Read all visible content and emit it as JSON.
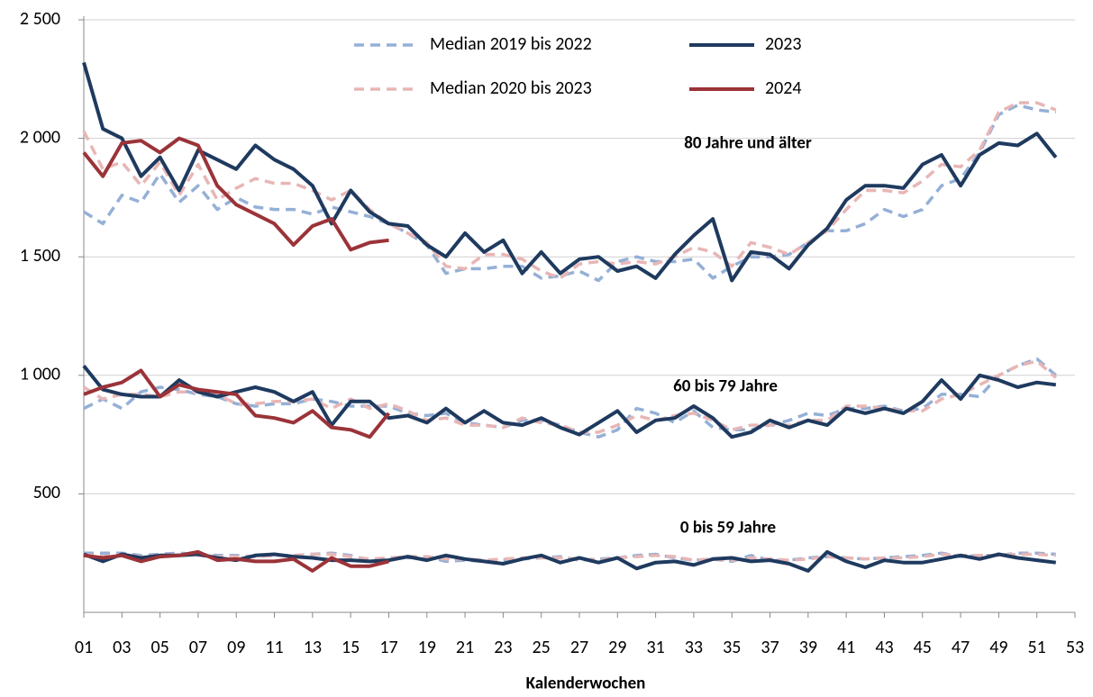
{
  "chart_data": {
    "type": "line",
    "x_label": "Kalenderwochen",
    "x": [
      1,
      2,
      3,
      4,
      5,
      6,
      7,
      8,
      9,
      10,
      11,
      12,
      13,
      14,
      15,
      16,
      17,
      18,
      19,
      20,
      21,
      22,
      23,
      24,
      25,
      26,
      27,
      28,
      29,
      30,
      31,
      32,
      33,
      34,
      35,
      36,
      37,
      38,
      39,
      40,
      41,
      42,
      43,
      44,
      45,
      46,
      47,
      48,
      49,
      50,
      51,
      52
    ],
    "xlim": [
      1,
      53
    ],
    "xticks": [
      {
        "value": 1,
        "label": "01"
      },
      {
        "value": 3,
        "label": "03"
      },
      {
        "value": 5,
        "label": "05"
      },
      {
        "value": 7,
        "label": "07"
      },
      {
        "value": 9,
        "label": "09"
      },
      11,
      13,
      15,
      17,
      19,
      21,
      23,
      25,
      27,
      29,
      31,
      33,
      35,
      37,
      39,
      41,
      43,
      45,
      47,
      49,
      51,
      53
    ],
    "ylim": [
      0,
      2500
    ],
    "yticks": [
      {
        "value": 500,
        "label": "500"
      },
      {
        "value": 1000,
        "label": "1 000"
      },
      {
        "value": 1500,
        "label": "1 500"
      },
      {
        "value": 2000,
        "label": "2 000"
      },
      {
        "value": 2500,
        "label": "2 500"
      }
    ],
    "grid": true,
    "legend": [
      {
        "name": "Median 2019 bis 2022",
        "color": "#95b0d6",
        "dashed": true
      },
      {
        "name": "Median 2020 bis 2023",
        "color": "#e8b6b6",
        "dashed": true
      },
      {
        "name": "2023",
        "color": "#1f3a5f",
        "dashed": false
      },
      {
        "name": "2024",
        "color": "#9b3339",
        "dashed": false
      }
    ],
    "groups": [
      {
        "label": "80 Jahre und älter",
        "series": [
          {
            "values": [
              1690,
              1640,
              1760,
              1730,
              1850,
              1730,
              1800,
              1700,
              1750,
              1710,
              1700,
              1700,
              1680,
              1710,
              1690,
              1670,
              1640,
              1600,
              1550,
              1430,
              1450,
              1450,
              1460,
              1460,
              1410,
              1420,
              1440,
              1400,
              1480,
              1500,
              1480,
              1480,
              1490,
              1410,
              1460,
              1500,
              1500,
              1510,
              1560,
              1610,
              1610,
              1640,
              1700,
              1670,
              1700,
              1800,
              1830,
              1940,
              2100,
              2140,
              2120,
              2110
            ]
          },
          {
            "values": [
              2030,
              1870,
              1900,
              1800,
              1900,
              1760,
              1890,
              1740,
              1790,
              1830,
              1810,
              1810,
              1780,
              1740,
              1780,
              1700,
              1640,
              1600,
              1560,
              1460,
              1450,
              1510,
              1510,
              1490,
              1440,
              1410,
              1470,
              1480,
              1470,
              1480,
              1470,
              1500,
              1540,
              1520,
              1460,
              1560,
              1540,
              1510,
              1560,
              1610,
              1700,
              1780,
              1780,
              1770,
              1820,
              1890,
              1880,
              1950,
              2110,
              2150,
              2150,
              2120
            ]
          },
          {
            "values": [
              2320,
              2040,
              2000,
              1840,
              1920,
              1780,
              1950,
              1910,
              1870,
              1970,
              1910,
              1870,
              1800,
              1640,
              1780,
              1690,
              1640,
              1630,
              1550,
              1500,
              1600,
              1520,
              1570,
              1430,
              1520,
              1430,
              1490,
              1500,
              1440,
              1460,
              1410,
              1510,
              1590,
              1660,
              1400,
              1520,
              1510,
              1450,
              1550,
              1620,
              1740,
              1800,
              1800,
              1790,
              1890,
              1930,
              1800,
              1930,
              1980,
              1970,
              2020,
              1920
            ]
          },
          {
            "values": [
              1940,
              1840,
              1980,
              1990,
              1940,
              2000,
              1970,
              1800,
              1720,
              1680,
              1640,
              1550,
              1630,
              1660,
              1530,
              1560,
              1570,
              null,
              null,
              null,
              null,
              null,
              null,
              null,
              null,
              null,
              null,
              null,
              null,
              null,
              null,
              null,
              null,
              null,
              null,
              null,
              null,
              null,
              null,
              null,
              null,
              null,
              null,
              null,
              null,
              null,
              null,
              null,
              null,
              null,
              null,
              null
            ]
          }
        ]
      },
      {
        "label": "60 bis 79 Jahre",
        "series": [
          {
            "values": [
              860,
              900,
              860,
              930,
              950,
              940,
              920,
              910,
              880,
              870,
              880,
              880,
              900,
              890,
              870,
              870,
              870,
              840,
              830,
              840,
              800,
              790,
              780,
              810,
              810,
              790,
              760,
              740,
              770,
              860,
              840,
              800,
              850,
              780,
              770,
              770,
              790,
              810,
              840,
              830,
              860,
              860,
              870,
              850,
              860,
              920,
              920,
              910,
              1000,
              1040,
              1070,
              1000
            ]
          },
          {
            "values": [
              950,
              900,
              920,
              920,
              910,
              930,
              930,
              920,
              880,
              880,
              890,
              890,
              900,
              860,
              900,
              860,
              880,
              850,
              810,
              820,
              790,
              790,
              780,
              820,
              800,
              790,
              760,
              760,
              790,
              830,
              810,
              830,
              840,
              810,
              770,
              790,
              790,
              790,
              810,
              810,
              870,
              870,
              860,
              850,
              850,
              900,
              920,
              960,
              1000,
              1040,
              1060,
              990
            ]
          },
          {
            "values": [
              1040,
              940,
              920,
              910,
              910,
              980,
              930,
              910,
              930,
              950,
              930,
              890,
              930,
              790,
              890,
              890,
              820,
              830,
              800,
              860,
              800,
              850,
              800,
              790,
              820,
              780,
              750,
              800,
              850,
              760,
              810,
              820,
              870,
              820,
              740,
              760,
              810,
              780,
              810,
              790,
              860,
              840,
              860,
              840,
              890,
              980,
              900,
              1000,
              980,
              950,
              970,
              960
            ]
          },
          {
            "values": [
              920,
              950,
              970,
              1020,
              910,
              960,
              940,
              930,
              920,
              830,
              820,
              800,
              850,
              780,
              770,
              740,
              840,
              null,
              null,
              null,
              null,
              null,
              null,
              null,
              null,
              null,
              null,
              null,
              null,
              null,
              null,
              null,
              null,
              null,
              null,
              null,
              null,
              null,
              null,
              null,
              null,
              null,
              null,
              null,
              null,
              null,
              null,
              null,
              null,
              null,
              null,
              null
            ]
          }
        ]
      },
      {
        "label": "0 bis 59 Jahre",
        "series": [
          {
            "values": [
              250,
              250,
              250,
              240,
              245,
              250,
              245,
              240,
              240,
              235,
              240,
              240,
              245,
              250,
              240,
              220,
              230,
              230,
              235,
              215,
              220,
              215,
              220,
              225,
              230,
              235,
              220,
              225,
              230,
              240,
              245,
              230,
              220,
              225,
              215,
              240,
              220,
              220,
              230,
              235,
              230,
              225,
              230,
              235,
              240,
              250,
              235,
              240,
              240,
              250,
              250,
              245
            ]
          },
          {
            "values": [
              245,
              235,
              245,
              235,
              240,
              245,
              240,
              235,
              235,
              235,
              240,
              240,
              245,
              245,
              235,
              225,
              230,
              235,
              235,
              225,
              225,
              220,
              225,
              230,
              230,
              230,
              225,
              220,
              230,
              235,
              240,
              235,
              220,
              225,
              220,
              230,
              225,
              220,
              225,
              235,
              230,
              225,
              230,
              230,
              235,
              245,
              240,
              240,
              240,
              245,
              245,
              240
            ]
          },
          {
            "values": [
              245,
              215,
              245,
              230,
              240,
              240,
              245,
              230,
              220,
              240,
              245,
              235,
              230,
              220,
              220,
              215,
              220,
              235,
              220,
              240,
              225,
              215,
              205,
              225,
              240,
              210,
              230,
              210,
              230,
              185,
              210,
              215,
              200,
              225,
              230,
              215,
              220,
              205,
              175,
              255,
              215,
              190,
              220,
              210,
              210,
              225,
              240,
              225,
              245,
              230,
              220,
              210
            ]
          },
          {
            "values": [
              240,
              230,
              240,
              215,
              235,
              240,
              255,
              220,
              225,
              215,
              215,
              225,
              175,
              230,
              195,
              195,
              215,
              null,
              null,
              null,
              null,
              null,
              null,
              null,
              null,
              null,
              null,
              null,
              null,
              null,
              null,
              null,
              null,
              null,
              null,
              null,
              null,
              null,
              null,
              null,
              null,
              null,
              null,
              null,
              null,
              null,
              null,
              null,
              null,
              null,
              null,
              null
            ]
          }
        ]
      }
    ]
  }
}
